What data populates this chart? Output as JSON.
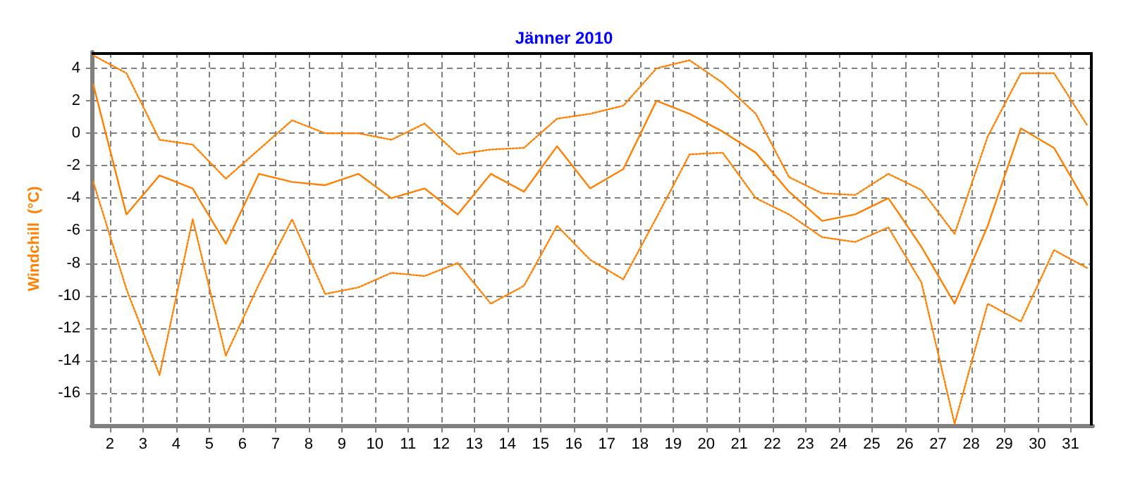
{
  "chart_data": {
    "type": "line",
    "title": "Jänner 2010",
    "ylabel": "Windchill  (°C)",
    "x": [
      1.5,
      2.5,
      3.5,
      4.5,
      5.5,
      6.5,
      7.5,
      8.5,
      9.5,
      10.5,
      11.5,
      12.5,
      13.5,
      14.5,
      15.5,
      16.5,
      17.5,
      18.5,
      19.5,
      20.5,
      21.5,
      22.5,
      23.5,
      24.5,
      25.5,
      26.5,
      27.5,
      28.5,
      29.5,
      30.5,
      31.5
    ],
    "series": [
      {
        "color": "#ff8000",
        "line_style": "dotted",
        "values": [
          4.8,
          3.7,
          -0.4,
          -0.7,
          -2.8,
          -1.0,
          0.8,
          0.0,
          0.0,
          -0.4,
          0.6,
          -1.3,
          -1.0,
          -0.9,
          0.9,
          1.2,
          1.7,
          4.0,
          4.5,
          3.1,
          1.2,
          -2.7,
          -3.7,
          -3.8,
          -2.5,
          -3.5,
          -6.2,
          -0.2,
          3.7,
          3.7,
          0.5
        ]
      },
      {
        "color": "#ff8000",
        "line_style": "solid",
        "values": [
          3.0,
          -5.0,
          -2.6,
          -3.4,
          -6.8,
          -2.5,
          -3.0,
          -3.2,
          -2.5,
          -4.0,
          -3.4,
          -5.0,
          -2.5,
          -3.6,
          -0.8,
          -3.4,
          -2.2,
          2.0,
          1.2,
          0.1,
          -1.2,
          -3.6,
          -5.4,
          -5.0,
          -4.0,
          -7.0,
          -10.5,
          -5.7,
          0.3,
          -0.9,
          -4.4
        ]
      },
      {
        "color": "#ff8000",
        "line_style": "dotted",
        "values": [
          -3.0,
          -9.6,
          -14.9,
          -5.3,
          -13.7,
          -9.3,
          -5.3,
          -9.9,
          -9.5,
          -8.6,
          -8.8,
          -8.0,
          -10.5,
          -9.4,
          -5.7,
          -7.8,
          -9.0,
          -5.2,
          -1.3,
          -1.2,
          -4.0,
          -5.0,
          -6.4,
          -6.7,
          -5.8,
          -9.2,
          -17.9,
          -10.5,
          -11.6,
          -7.2,
          -8.3
        ]
      }
    ],
    "xlim": [
      1.45,
      31.67
    ],
    "xticks": [
      2,
      3,
      4,
      5,
      6,
      7,
      8,
      9,
      10,
      11,
      12,
      13,
      14,
      15,
      16,
      17,
      18,
      19,
      20,
      21,
      22,
      23,
      24,
      25,
      26,
      27,
      28,
      29,
      30,
      31
    ],
    "ylim": [
      -18,
      5
    ],
    "yticks": [
      -16,
      -14,
      -12,
      -10,
      -8,
      -6,
      -4,
      -2,
      0,
      2,
      4
    ],
    "grid": true,
    "marker": "none"
  }
}
